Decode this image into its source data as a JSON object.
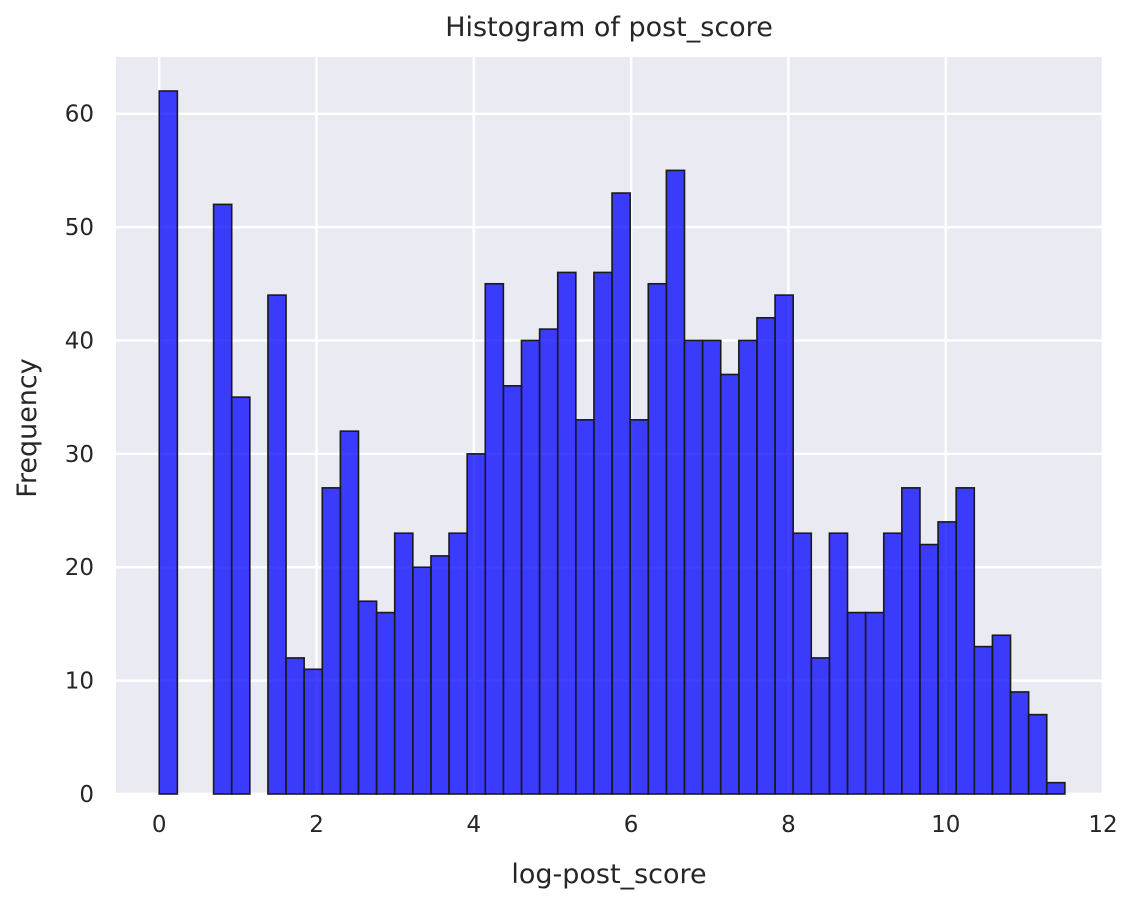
{
  "chart_data": {
    "type": "bar",
    "title": "Histogram of post_score",
    "xlabel": "log-post_score",
    "ylabel": "Frequency",
    "xlim": [
      -0.55,
      12.0
    ],
    "ylim": [
      0,
      65
    ],
    "x_ticks": [
      0,
      2,
      4,
      6,
      8,
      10,
      12
    ],
    "y_ticks": [
      0,
      10,
      20,
      30,
      40,
      50,
      60
    ],
    "grid": true,
    "bar_color": "#0000ff",
    "bar_alpha": 0.75,
    "edge_color": "#1a1a1a",
    "background_color": "#eaeaf2",
    "bin_width": 0.2303,
    "bin_start": 0,
    "counts": [
      62,
      0,
      0,
      52,
      35,
      0,
      44,
      12,
      11,
      27,
      32,
      17,
      16,
      23,
      20,
      21,
      23,
      30,
      45,
      36,
      40,
      41,
      46,
      33,
      46,
      53,
      33,
      45,
      55,
      40,
      40,
      37,
      40,
      42,
      44,
      23,
      12,
      23,
      16,
      16,
      23,
      27,
      22,
      24,
      27,
      13,
      14,
      9,
      7,
      1
    ]
  }
}
